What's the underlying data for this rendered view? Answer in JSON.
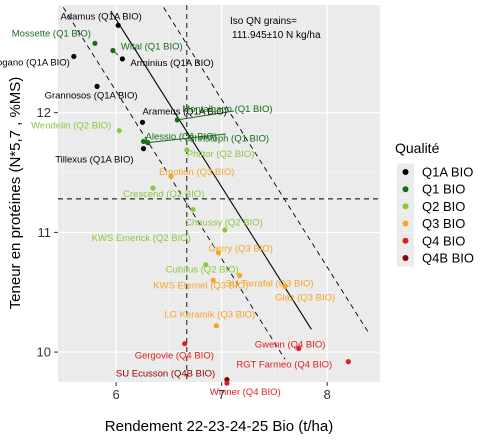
{
  "chart_data": {
    "type": "scatter",
    "xlabel": "Rendement 22-23-24-25 Bio (t/ha)",
    "ylabel": "Teneur en protéines (N*5,7 , %MS)",
    "xlim": [
      5.45,
      8.5
    ],
    "ylim": [
      9.75,
      12.9
    ],
    "xticks": [
      "6",
      "7",
      "8"
    ],
    "yticks": [
      "10",
      "11",
      "12"
    ],
    "annotation": "Iso QN grains=\n111.945±10 N kg/ha",
    "legend": {
      "title": "Qualité",
      "placement": "right",
      "items": [
        {
          "label": "Q1A BIO",
          "color": "#000000"
        },
        {
          "label": "Q1 BIO",
          "color": "#1a6b1a"
        },
        {
          "label": "Q2 BIO",
          "color": "#8ec63f"
        },
        {
          "label": "Q3 BIO",
          "color": "#f5a623"
        },
        {
          "label": "Q4 BIO",
          "color": "#e02020"
        },
        {
          "label": "Q4B BIO",
          "color": "#8b0000"
        }
      ]
    },
    "reference_lines": {
      "vertical_x": 6.67,
      "horizontal_y": 11.28
    },
    "points": [
      {
        "label": "Adamus (Q1A BIO)",
        "x": 6.02,
        "y": 12.73,
        "q": "Q1A BIO"
      },
      {
        "label": "Mossette (Q1 BIO)",
        "x": 5.8,
        "y": 12.58,
        "q": "Q1 BIO"
      },
      {
        "label": "Wital (Q1 BIO)",
        "x": 5.97,
        "y": 12.52,
        "q": "Q1 BIO"
      },
      {
        "label": "Togano (Q1A BIO)",
        "x": 5.6,
        "y": 12.47,
        "q": "Q1A BIO"
      },
      {
        "label": "Arminius (Q1A BIO)",
        "x": 6.06,
        "y": 12.45,
        "q": "Q1A BIO"
      },
      {
        "label": "Grannosos (Q1A BIO)",
        "x": 5.82,
        "y": 12.22,
        "q": "Q1A BIO"
      },
      {
        "label": "Arameus (Q1A BIO)",
        "x": 6.25,
        "y": 11.92,
        "q": "Q1A BIO"
      },
      {
        "label": "Montalbano (Q1 BIO)",
        "x": 6.58,
        "y": 11.94,
        "q": "Q1 BIO"
      },
      {
        "label": "Wendelin (Q2 BIO)",
        "x": 6.03,
        "y": 11.85,
        "q": "Q2 BIO"
      },
      {
        "label": "Alessio (Q1 BIO)",
        "x": 6.26,
        "y": 11.76,
        "q": "Q1 BIO"
      },
      {
        "label": "Christoph (Q1 BIO)",
        "x": 6.3,
        "y": 11.75,
        "q": "Q1 BIO"
      },
      {
        "label": "Tillexus (Q1A BIO)",
        "x": 6.26,
        "y": 11.7,
        "q": "Q1A BIO"
      },
      {
        "label": "Philtor (Q2 BIO)",
        "x": 6.67,
        "y": 11.69,
        "q": "Q2 BIO"
      },
      {
        "label": "Emotion (Q3 BIO)",
        "x": 6.52,
        "y": 11.47,
        "q": "Q3 BIO"
      },
      {
        "label": "Crescend (Q2 BIO)",
        "x": 6.35,
        "y": 11.37,
        "q": "Q2 BIO"
      },
      {
        "label": "Chaussy (Q2 BIO)",
        "x": 6.73,
        "y": 11.19,
        "q": "Q2 BIO"
      },
      {
        "label": "KWS Emerick (Q2 BIO)",
        "x": 7.03,
        "y": 11.02,
        "q": "Q2 BIO"
      },
      {
        "label": "Cubitus (Q2 BIO)",
        "x": 6.85,
        "y": 10.73,
        "q": "Q2 BIO"
      },
      {
        "label": "Gerry (Q3 BIO)",
        "x": 6.97,
        "y": 10.83,
        "q": "Q3 BIO"
      },
      {
        "label": "SU Tarrafal (Q3 BIO)",
        "x": 7.17,
        "y": 10.64,
        "q": "Q3 BIO"
      },
      {
        "label": "KWS Eternel (Q3 BIO)",
        "x": 6.92,
        "y": 10.6,
        "q": "Q3 BIO"
      },
      {
        "label": "Glaz (Q3 BIO)",
        "x": 7.6,
        "y": 10.55,
        "q": "Q3 BIO"
      },
      {
        "label": "LG Keramik (Q3 BIO)",
        "x": 6.95,
        "y": 10.22,
        "q": "Q3 BIO"
      },
      {
        "label": "Gergovie (Q4 BIO)",
        "x": 6.65,
        "y": 10.07,
        "q": "Q4 BIO"
      },
      {
        "label": "Gwenn (Q4 BIO)",
        "x": 7.73,
        "y": 10.03,
        "q": "Q4 BIO"
      },
      {
        "label": "RGT Farmeo (Q4 BIO)",
        "x": 8.2,
        "y": 9.92,
        "q": "Q4 BIO"
      },
      {
        "label": "SU Ecusson (Q4B BIO)",
        "x": 7.05,
        "y": 9.77,
        "q": "Q4B BIO"
      },
      {
        "label": "Winner (Q4 BIO)",
        "x": 7.05,
        "y": 9.74,
        "q": "Q4 BIO"
      }
    ]
  }
}
